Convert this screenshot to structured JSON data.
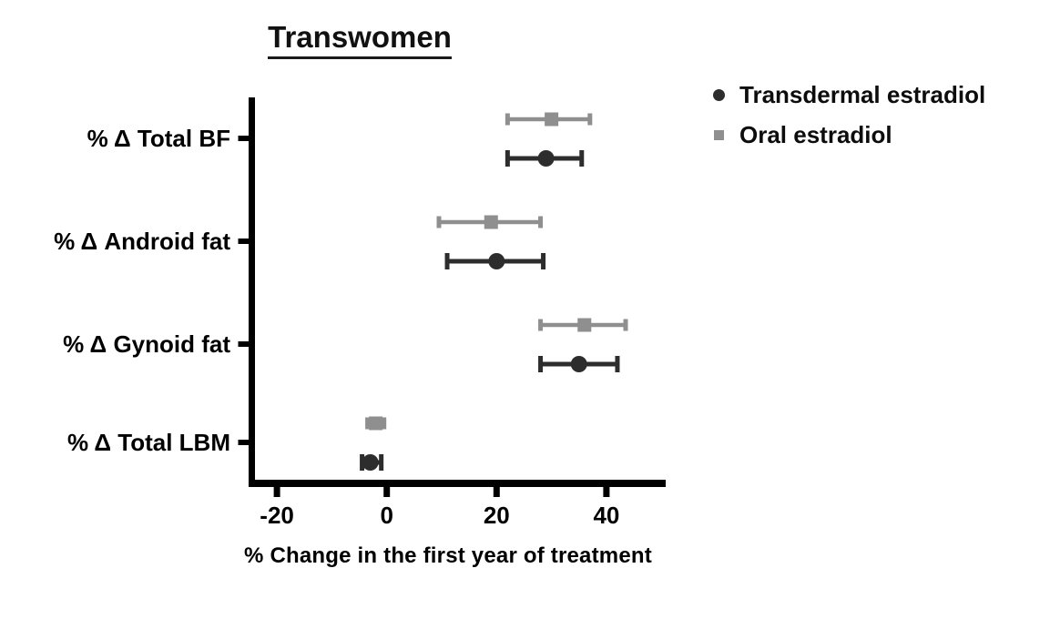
{
  "figure": {
    "background": "#ffffff",
    "text_color": "#000000",
    "axis_color": "#000000"
  },
  "chart_data": {
    "type": "scatter",
    "subtype": "horizontal-point-estimates-with-error-bars",
    "title": "Transwomen",
    "xlabel": "% Change in the first year of treatment",
    "ylabel": "",
    "categories": [
      "% Δ Total BF",
      "% Δ Android fat",
      "% Δ Gynoid fat",
      "% Δ Total LBM"
    ],
    "x_tick_labels": [
      "-20",
      "0",
      "20",
      "40"
    ],
    "x_tick_values": [
      -20,
      0,
      20,
      40
    ],
    "xlim": [
      -25,
      50
    ],
    "grid": false,
    "legend_position": "top-right",
    "series": [
      {
        "name": "Transdermal estradiol",
        "marker": "circle",
        "color": "#2d2d2d",
        "values": [
          29,
          20,
          35,
          -3
        ],
        "ci_low": [
          22,
          11,
          28,
          -4.5
        ],
        "ci_high": [
          35.5,
          28.5,
          42,
          -1
        ]
      },
      {
        "name": "Oral estradiol",
        "marker": "square",
        "color": "#8f8f8f",
        "values": [
          30,
          19,
          36,
          -2
        ],
        "ci_low": [
          22,
          9.5,
          28,
          -3.5
        ],
        "ci_high": [
          37,
          28,
          43.5,
          -0.5
        ]
      }
    ]
  }
}
